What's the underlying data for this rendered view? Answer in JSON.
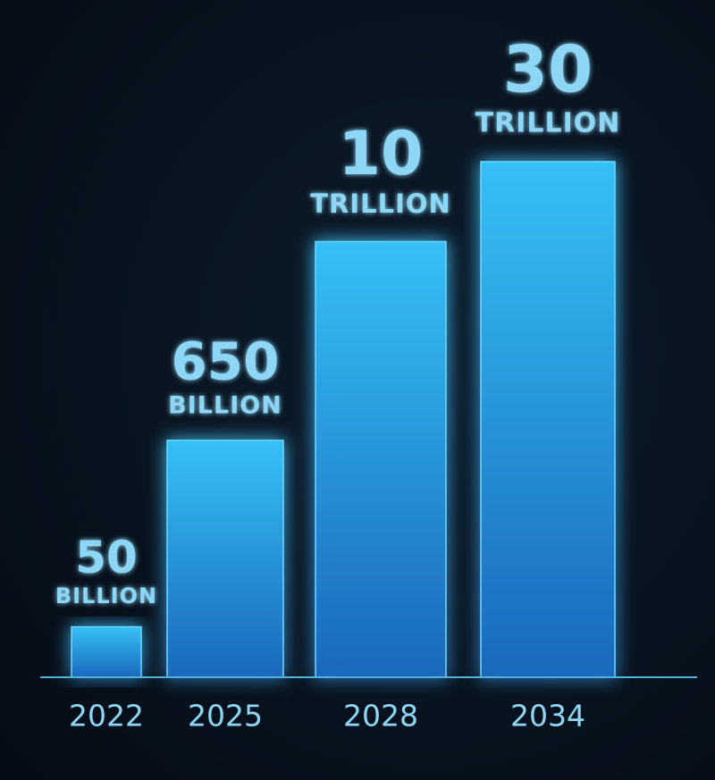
{
  "chart_data": {
    "type": "bar",
    "categories": [
      "2022",
      "2025",
      "2028",
      "2034"
    ],
    "values": [
      50000000000,
      650000000000,
      10000000000000,
      30000000000000
    ],
    "value_labels": [
      [
        "50",
        "BILLION"
      ],
      [
        "650",
        "BILLION"
      ],
      [
        "10",
        "TRILLION"
      ],
      [
        "30",
        "TRILLION"
      ]
    ],
    "scale": "log",
    "ylim": [
      25000000000,
      30000000000000
    ],
    "color": "#29a9ee"
  }
}
